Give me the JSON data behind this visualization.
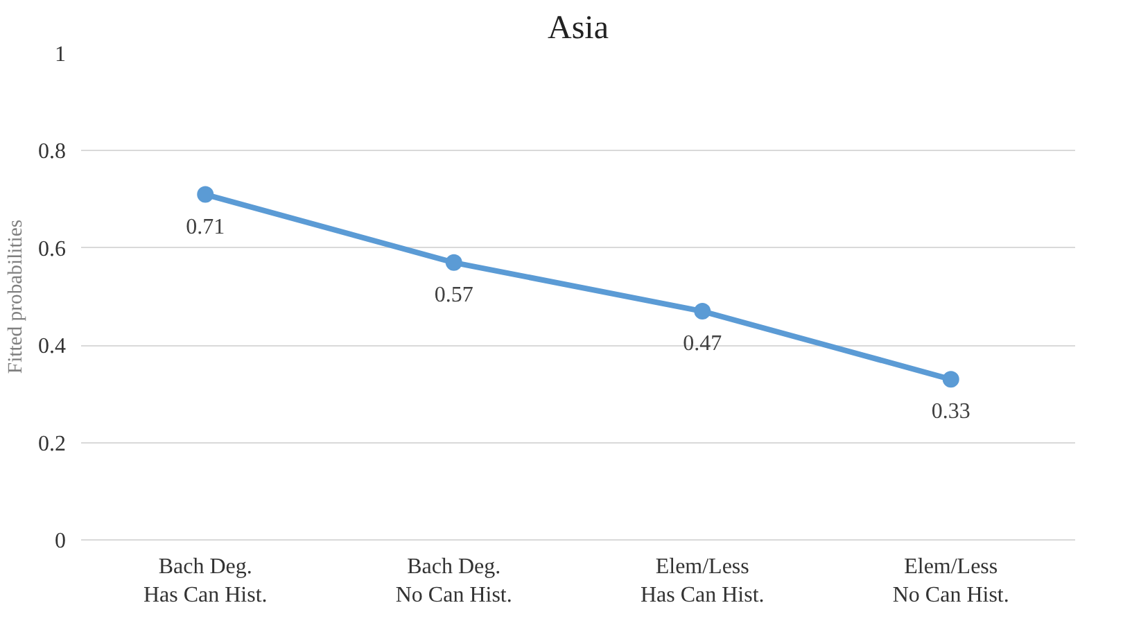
{
  "chart_data": {
    "type": "line",
    "title": "Asia",
    "ylabel": "Fitted probabilities",
    "categories": [
      "Bach Deg.\nHas Can Hist.",
      "Bach Deg.\nNo Can Hist.",
      "Elem/Less\nHas Can Hist.",
      "Elem/Less\nNo Can Hist."
    ],
    "series": [
      {
        "color": "#5b9bd5",
        "values": [
          0.71,
          0.57,
          0.47,
          0.33
        ]
      }
    ],
    "ylim": [
      0,
      1
    ],
    "yticks": [
      0,
      0.2,
      0.4,
      0.6,
      0.8,
      1
    ],
    "grid": "y",
    "marker": "circle",
    "line_style": "solid",
    "data_labels": true
  }
}
